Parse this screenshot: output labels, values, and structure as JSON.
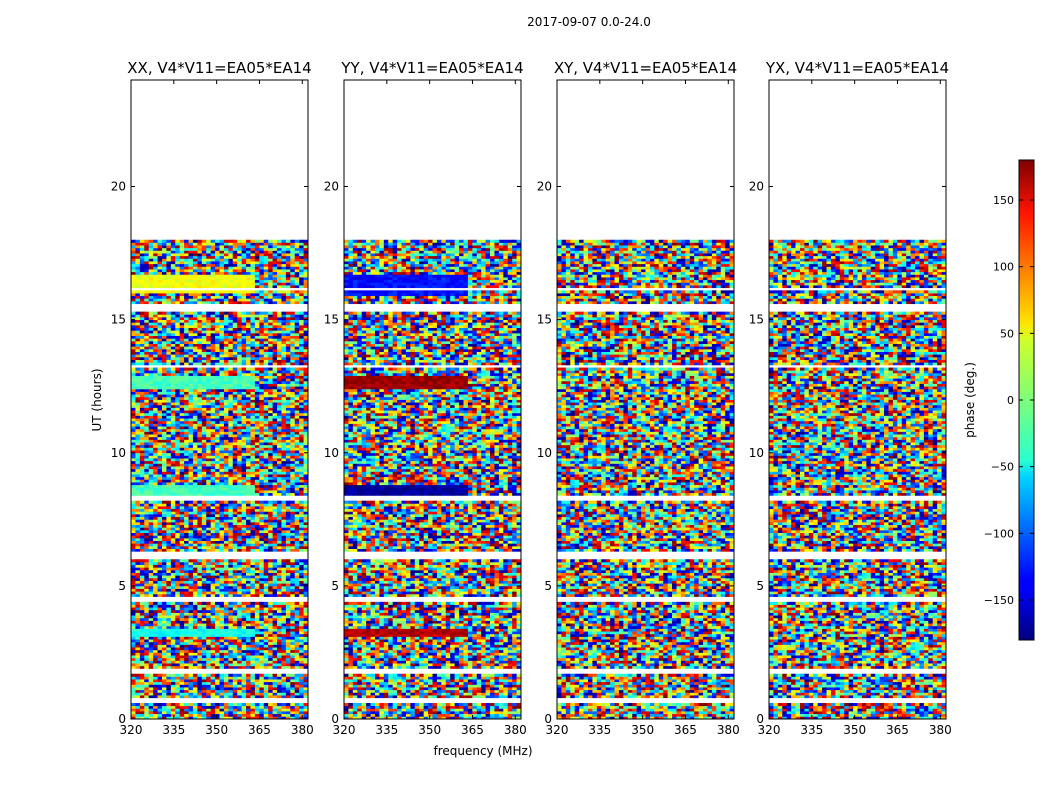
{
  "chart_data": {
    "type": "heatmap",
    "suptitle": "2017-09-07 0.0-24.0",
    "xlabel": "frequency (MHz)",
    "ylabel": "UT (hours)",
    "xlim": [
      320,
      382
    ],
    "ylim": [
      0,
      24
    ],
    "xticks": [
      "320",
      "335",
      "350",
      "365",
      "380"
    ],
    "xtick_values": [
      320,
      335,
      350,
      365,
      380
    ],
    "yticks": [
      "0",
      "5",
      "10",
      "15",
      "20"
    ],
    "ytick_values": [
      0,
      5,
      10,
      15,
      20
    ],
    "data_time_range_hours": [
      0,
      18
    ],
    "gap_bands_hours": [
      [
        0.6,
        0.75
      ],
      [
        1.7,
        1.85
      ],
      [
        4.4,
        4.6
      ],
      [
        6.0,
        6.3
      ],
      [
        8.2,
        8.35
      ],
      [
        13.15,
        13.3
      ],
      [
        15.3,
        15.6
      ],
      [
        16.05,
        16.15
      ]
    ],
    "panels": [
      {
        "title": "XX, V4*V11=EA05*EA14",
        "coherent_bands": [
          {
            "t": [
              16.0,
              16.7
            ],
            "phase": 40,
            "f_end": 363
          },
          {
            "t": [
              12.4,
              12.9
            ],
            "phase": -20,
            "f_end": 363
          },
          {
            "t": [
              8.4,
              8.8
            ],
            "phase": -20,
            "f_end": 363
          },
          {
            "t": [
              3.1,
              3.4
            ],
            "phase": -40,
            "f_end": 363
          }
        ]
      },
      {
        "title": "YY, V4*V11=EA05*EA14",
        "coherent_bands": [
          {
            "t": [
              15.9,
              16.7
            ],
            "phase": -130,
            "f_end": 363
          },
          {
            "t": [
              12.4,
              12.9
            ],
            "phase": 170,
            "f_end": 363
          },
          {
            "t": [
              8.4,
              8.8
            ],
            "phase": -170,
            "f_end": 363
          },
          {
            "t": [
              3.1,
              3.4
            ],
            "phase": 160,
            "f_end": 363
          }
        ]
      },
      {
        "title": "XY, V4*V11=EA05*EA14",
        "coherent_bands": []
      },
      {
        "title": "YX, V4*V11=EA05*EA14",
        "coherent_bands": []
      }
    ],
    "colorbar": {
      "label": "phase (deg.)",
      "range": [
        -180,
        180
      ],
      "ticks": [
        "150",
        "100",
        "50",
        "0",
        "−50",
        "−100",
        "−150"
      ],
      "tick_values": [
        150,
        100,
        50,
        0,
        -50,
        -100,
        -150
      ],
      "colormap": "jet"
    }
  }
}
